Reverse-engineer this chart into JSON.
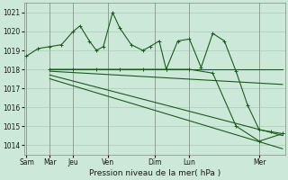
{
  "background_color": "#cce8d8",
  "grid_color": "#aaccb8",
  "line_color": "#1a5c1a",
  "title": "Pression niveau de la mer( hPa )",
  "ylim": [
    1013.5,
    1021.5
  ],
  "yticks": [
    1014,
    1015,
    1016,
    1017,
    1018,
    1019,
    1020,
    1021
  ],
  "day_positions": [
    0.0,
    1.0,
    2.0,
    3.5,
    5.5,
    7.0,
    10.0
  ],
  "day_labels": [
    "Sam",
    "Mar",
    "Jeu",
    "Ven",
    "Dim",
    "Lun",
    "Mer"
  ],
  "xlim": [
    -0.1,
    11.1
  ],
  "series1_x": [
    0.0,
    0.5,
    1.0,
    1.5,
    2.0,
    2.3,
    2.7,
    3.0,
    3.3,
    3.7,
    4.0,
    4.5,
    5.0,
    5.3,
    5.7,
    6.0,
    6.5,
    7.0,
    7.5,
    8.0,
    8.5,
    9.0,
    9.5,
    10.0,
    10.5,
    11.0
  ],
  "series1_y": [
    1018.7,
    1019.1,
    1019.2,
    1019.3,
    1020.0,
    1020.3,
    1019.5,
    1019.0,
    1019.2,
    1021.0,
    1020.2,
    1019.3,
    1019.0,
    1019.2,
    1019.5,
    1018.0,
    1019.5,
    1019.6,
    1018.1,
    1019.9,
    1019.5,
    1017.9,
    1016.1,
    1014.8,
    1014.7,
    1014.6
  ],
  "series2_x": [
    1.0,
    2.0,
    3.0,
    4.0,
    5.0,
    6.0,
    7.0,
    8.0,
    9.0,
    10.0,
    11.0
  ],
  "series2_y": [
    1018.0,
    1018.0,
    1018.0,
    1018.0,
    1018.0,
    1018.0,
    1018.0,
    1017.8,
    1015.0,
    1014.2,
    1014.6
  ],
  "series3_x": [
    1.0,
    11.0
  ],
  "series3_y": [
    1018.0,
    1018.0
  ],
  "series4_x": [
    1.0,
    11.0
  ],
  "series4_y": [
    1017.9,
    1017.2
  ],
  "series5_x": [
    1.0,
    11.0
  ],
  "series5_y": [
    1017.7,
    1014.5
  ],
  "series6_x": [
    1.0,
    11.0
  ],
  "series6_y": [
    1017.5,
    1013.8
  ]
}
